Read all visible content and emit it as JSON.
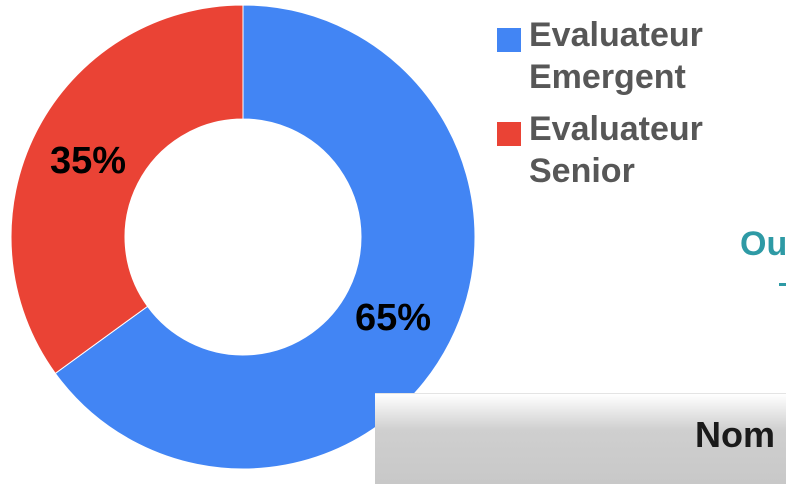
{
  "chart_data": {
    "type": "pie",
    "variant": "donut",
    "title": "",
    "slices": [
      {
        "name": "Evaluateur Emergent",
        "value": 65,
        "label": "65%",
        "color": "#4285f4"
      },
      {
        "name": "Evaluateur Senior",
        "value": 35,
        "label": "35%",
        "color": "#ea4335"
      }
    ],
    "legend_placement": "right"
  },
  "legend": {
    "items": [
      {
        "label": "Evaluateur\nEmergent",
        "color": "#4285f4"
      },
      {
        "label": "Evaluateur\nSenior",
        "color": "#ea4335"
      }
    ]
  },
  "cut_off_text": "Ou",
  "bottom_box_text": "Nom"
}
